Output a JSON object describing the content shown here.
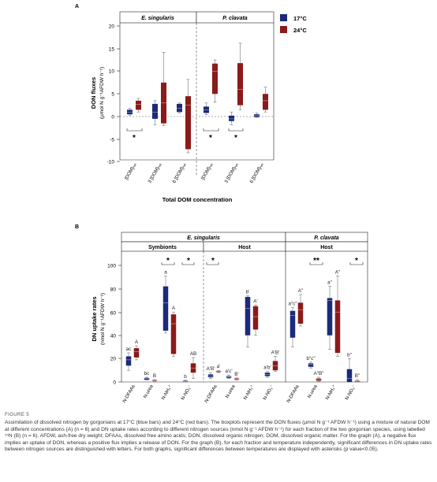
{
  "colors": {
    "blue": "#1b2a7a",
    "red": "#8b1a1a",
    "whisker": "#888888",
    "axis": "#222222"
  },
  "panelA": {
    "label": "A",
    "groups": [
      "E. singularis",
      "P. clavata"
    ],
    "ylabel_line1": "DON fluxes",
    "ylabel_line2": "(µmol N g⁻¹AFDW h⁻¹)",
    "xlabel": "Total DOM concentration",
    "legend": [
      "17°C",
      "24°C"
    ],
    "yticks": [
      "20",
      "15",
      "10",
      "5",
      "0",
      "-5",
      "-10"
    ],
    "xcats": [
      "[DOM]ₙₐₜ",
      "3 [DOM]ₙₐₜ",
      "6 [DOM]ₙₐₜ",
      "[DOM]ₙₐₜ",
      "3 [DOM]ₙₐₜ",
      "6 [DOM]ₙₐₜ"
    ],
    "stars": [
      "*",
      "*",
      "*"
    ]
  },
  "panelB": {
    "label": "B",
    "groups": [
      "E. singularis",
      "P. clavata"
    ],
    "subgroups": [
      "Symbionts",
      "Host",
      "Host"
    ],
    "ylabel_line1": "DN uptake rates",
    "ylabel_line2": "(nmol N g⁻¹AFDW h⁻¹)",
    "yticks": [
      "100",
      "80",
      "60",
      "40",
      "20",
      "0"
    ],
    "xcats": [
      "N-DFAAs",
      "N-urea",
      "N-NH₄⁺",
      "N-NO₃⁻",
      "N-DFAAs",
      "N-urea",
      "N-NH₄⁺",
      "N-NO₃⁻",
      "N-DFAAs",
      "N-urea",
      "N-NH₄⁺",
      "N-NO₃⁻"
    ],
    "sig": [
      "*",
      "*",
      "*",
      "**",
      "*"
    ],
    "letters": [
      "ac",
      "A",
      "bc",
      "B",
      "a",
      "A",
      "b",
      "AB",
      "A'B'",
      "a'",
      "a'c'",
      "B'",
      "b'",
      "A'",
      "a'b'",
      "A'B'",
      "a\"c\"",
      "A\"",
      "b\"c\"",
      "A\"B\"",
      "a\"",
      "A\"",
      "b\"",
      "B\""
    ]
  },
  "chart_data": [
    {
      "type": "box",
      "panel": "A",
      "xlabel": "Total DOM concentration",
      "ylabel": "DON fluxes (µmol N g⁻¹AFDW h⁻¹)",
      "ylim": [
        -10,
        20
      ],
      "categories": [
        "E. singularis [DOM]nat",
        "E. singularis 3 [DOM]nat",
        "E. singularis 6 [DOM]nat",
        "P. clavata [DOM]nat",
        "P. clavata 3 [DOM]nat",
        "P. clavata 6 [DOM]nat"
      ],
      "series": [
        {
          "name": "17°C",
          "boxes": [
            {
              "min": 0.3,
              "q1": 0.5,
              "median": 1.0,
              "q3": 1.5,
              "max": 1.8
            },
            {
              "min": -1.8,
              "q1": -0.5,
              "median": 1.0,
              "q3": 2.8,
              "max": 3.5
            },
            {
              "min": 0.8,
              "q1": 1.0,
              "median": 1.8,
              "q3": 2.8,
              "max": 3.0
            },
            {
              "min": 0.4,
              "q1": 0.8,
              "median": 1.5,
              "q3": 2.2,
              "max": 3.0
            },
            {
              "min": -1.8,
              "q1": -1.0,
              "median": -0.5,
              "q3": 0.2,
              "max": 1.0
            },
            {
              "min": -0.2,
              "q1": -0.1,
              "median": 0.2,
              "q3": 0.5,
              "max": 0.8
            }
          ]
        },
        {
          "name": "24°C",
          "boxes": [
            {
              "min": 1.0,
              "q1": 1.5,
              "median": 2.7,
              "q3": 3.5,
              "max": 4.0
            },
            {
              "min": -2.0,
              "q1": -1.5,
              "median": 3.0,
              "q3": 7.5,
              "max": 14.2
            },
            {
              "min": -8.0,
              "q1": -7.2,
              "median": 2.5,
              "q3": 4.5,
              "max": 8.2
            },
            {
              "min": 3.2,
              "q1": 5.0,
              "median": 10.0,
              "q3": 11.7,
              "max": 12.5
            },
            {
              "min": 1.5,
              "q1": 2.5,
              "median": 6.0,
              "q3": 11.8,
              "max": 16.2
            },
            {
              "min": 1.0,
              "q1": 1.5,
              "median": 3.5,
              "q3": 5.0,
              "max": 6.5
            }
          ]
        }
      ],
      "significance": [
        {
          "category": "E. singularis [DOM]nat",
          "label": "*"
        },
        {
          "category": "P. clavata [DOM]nat",
          "label": "*"
        },
        {
          "category": "P. clavata 3 [DOM]nat",
          "label": "*"
        }
      ]
    },
    {
      "type": "box",
      "panel": "B",
      "ylabel": "DN uptake rates (nmol N g⁻¹AFDW h⁻¹)",
      "ylim": [
        0,
        100
      ],
      "categories": [
        "E. singularis Symbionts N-DFAAs",
        "E. singularis Symbionts N-urea",
        "E. singularis Symbionts N-NH4+",
        "E. singularis Symbionts N-NO3-",
        "E. singularis Host N-DFAAs",
        "E. singularis Host N-urea",
        "E. singularis Host N-NH4+",
        "E. singularis Host N-NO3-",
        "P. clavata Host N-DFAAs",
        "P. clavata Host N-urea",
        "P. clavata Host N-NH4+",
        "P. clavata Host N-NO3-"
      ],
      "series": [
        {
          "name": "17°C",
          "boxes": [
            {
              "min": 10,
              "q1": 14,
              "median": 19,
              "q3": 22,
              "max": 25
            },
            {
              "min": 1.5,
              "q1": 2,
              "median": 3,
              "q3": 3.5,
              "max": 4
            },
            {
              "min": 42,
              "q1": 44,
              "median": 68,
              "q3": 82,
              "max": 91
            },
            {
              "min": 0,
              "q1": 0.2,
              "median": 0.5,
              "q3": 1,
              "max": 1.5
            },
            {
              "min": 3,
              "q1": 4,
              "median": 5,
              "q3": 6.5,
              "max": 8
            },
            {
              "min": 3,
              "q1": 3.5,
              "median": 4.5,
              "q3": 5,
              "max": 6
            },
            {
              "min": 30,
              "q1": 40,
              "median": 63,
              "q3": 73,
              "max": 74
            },
            {
              "min": 4,
              "q1": 5,
              "median": 6.5,
              "q3": 8,
              "max": 9
            },
            {
              "min": 30,
              "q1": 38,
              "median": 57,
              "q3": 61,
              "max": 64
            },
            {
              "min": 12,
              "q1": 13,
              "median": 15,
              "q3": 16,
              "max": 17
            },
            {
              "min": 28,
              "q1": 40,
              "median": 70,
              "q3": 72,
              "max": 82
            },
            {
              "min": 0,
              "q1": 0,
              "median": 3,
              "q3": 11,
              "max": 20
            }
          ]
        },
        {
          "name": "24°C",
          "boxes": [
            {
              "min": 19,
              "q1": 21,
              "median": 26,
              "q3": 29,
              "max": 31
            },
            {
              "min": 0.5,
              "q1": 0.8,
              "median": 1.2,
              "q3": 1.6,
              "max": 2
            },
            {
              "min": 22,
              "q1": 24,
              "median": 50,
              "q3": 58,
              "max": 60
            },
            {
              "min": 3,
              "q1": 8,
              "median": 12,
              "q3": 16,
              "max": 21
            },
            {
              "min": 8,
              "q1": 8.5,
              "median": 9,
              "q3": 9.5,
              "max": 10
            },
            {
              "min": 1.5,
              "q1": 2,
              "median": 2.5,
              "q3": 3,
              "max": 3.5
            },
            {
              "min": 40,
              "q1": 45,
              "median": 56,
              "q3": 65,
              "max": 66
            },
            {
              "min": 9,
              "q1": 10,
              "median": 14,
              "q3": 18,
              "max": 22
            },
            {
              "min": 48,
              "q1": 50,
              "median": 62,
              "q3": 68,
              "max": 75
            },
            {
              "min": 0.5,
              "q1": 1,
              "median": 2,
              "q3": 3,
              "max": 4
            },
            {
              "min": 22,
              "q1": 25,
              "median": 60,
              "q3": 70,
              "max": 91
            },
            {
              "min": 0,
              "q1": 0,
              "median": 0.5,
              "q3": 1,
              "max": 2
            }
          ]
        }
      ],
      "significance": [
        {
          "category": "E. singularis Symbionts N-NH4+",
          "label": "*"
        },
        {
          "category": "E. singularis Symbionts N-NO3-",
          "label": "*"
        },
        {
          "category": "E. singularis Host N-DFAAs",
          "label": "*"
        },
        {
          "category": "P. clavata Host N-urea",
          "label": "**"
        },
        {
          "category": "P. clavata Host N-NO3-",
          "label": "*"
        }
      ]
    }
  ],
  "caption": {
    "title": "FIGURE 5",
    "text": "Assimilation of dissolved nitrogen by gorgonians at 17°C (blue bars) and 24°C (red bars). The boxplots represent the DON fluxes (µmol N g⁻¹ AFDW h⁻¹) using a mixture of natural DOM at different concentrations (A) (n = 6) and DN uptake rates according to different nitrogen sources (nmol N g⁻¹ AFDW h⁻¹) for each fraction of the two gorgonian species, using labelled ¹⁵N (B) (n = 6). AFDW, ash-free dry weight; DFAAs, dissolved free amino acids; DON, dissolved organic nitrogen; DOM, dissolved organic matter. For the graph (A), a negative flux implies an uptake of DON, whereas a positive flux implies a release of DON. For the graph (B), for each fraction and temperature independently, significant differences in DN uptake rates between nitrogen sources are distinguished with letters. For both graphs, significant differences between temperatures are displayed with asterisks (p value<0.05)."
  }
}
